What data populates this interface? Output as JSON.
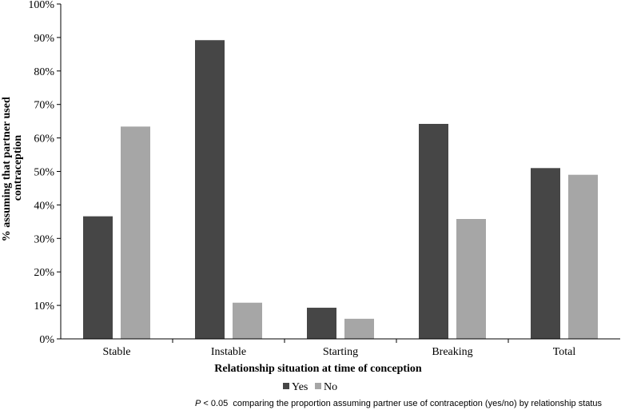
{
  "chart_data": {
    "type": "bar",
    "categories": [
      "Stable",
      "Instable",
      "Starting",
      "Breaking",
      "Total"
    ],
    "series": [
      {
        "name": "Yes",
        "values": [
          36.6,
          89.2,
          9.3,
          64.2,
          51.0
        ],
        "color": "#464646"
      },
      {
        "name": "No",
        "values": [
          63.4,
          10.8,
          6.0,
          35.8,
          49.0
        ],
        "color": "#a6a6a6"
      }
    ],
    "ylim": [
      0,
      100
    ],
    "y_ticks": [
      "0%",
      "10%",
      "20%",
      "30%",
      "40%",
      "50%",
      "60%",
      "70%",
      "80%",
      "90%",
      "100%"
    ],
    "ylabel_line1": "% assuming that  partner used",
    "ylabel_line2": "contraception",
    "xlabel": "Relationship situation at time of conception",
    "legend_placement": "bottom-center",
    "grid": false,
    "footnote_p": "P",
    "footnote_rest": " < 0.05  comparing the proportion assuming partner use of contraception (yes/no) by relationship status"
  }
}
